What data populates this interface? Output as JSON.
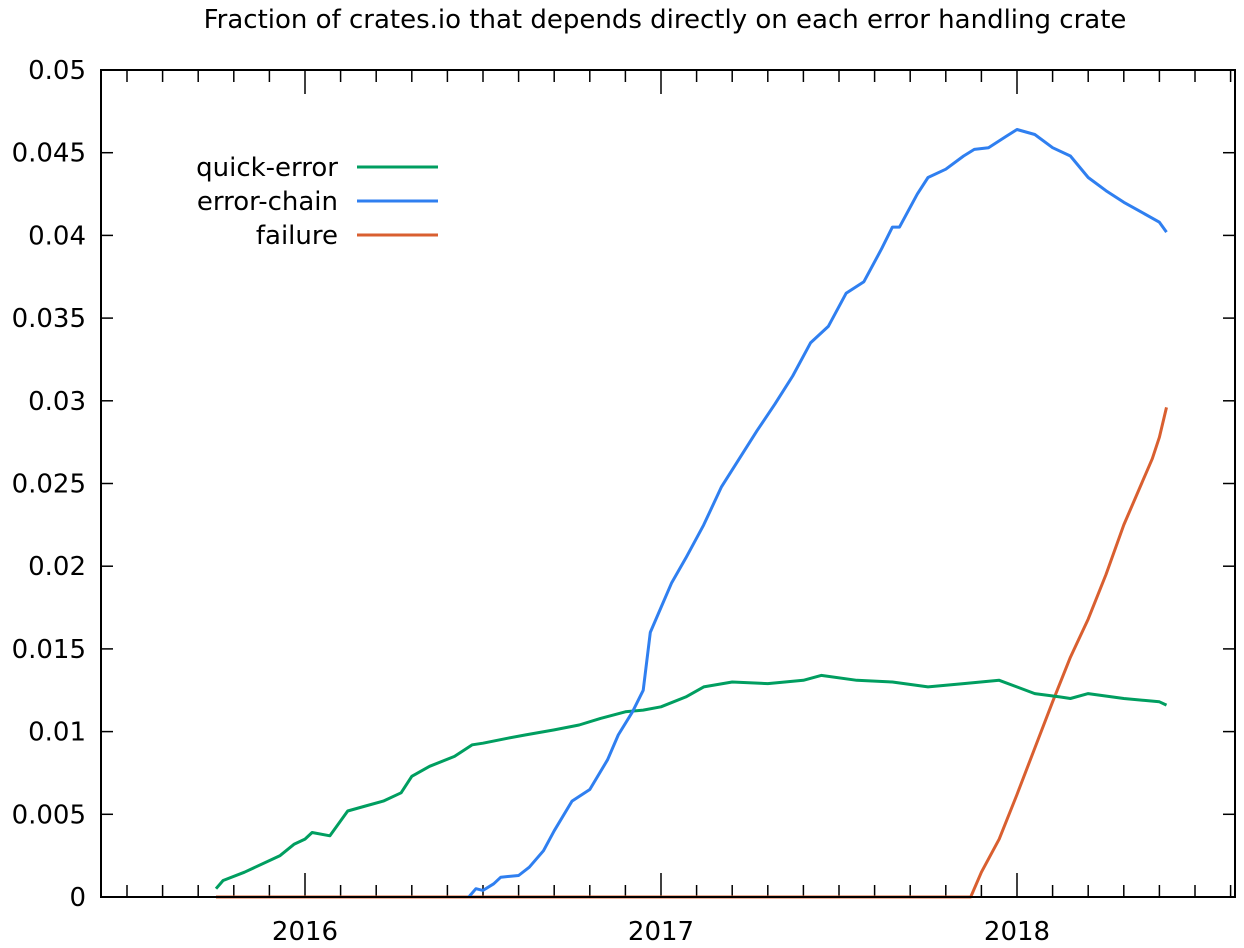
{
  "chart_data": {
    "type": "line",
    "title": "Fraction of crates.io that depends directly on each error handling crate",
    "xlabel": "",
    "ylabel": "",
    "xlim": [
      2015.43,
      2018.62
    ],
    "ylim": [
      0,
      0.05
    ],
    "x_ticks": [
      "2016",
      "2017",
      "2018"
    ],
    "y_ticks": [
      "0",
      "0.005",
      "0.01",
      "0.015",
      "0.02",
      "0.025",
      "0.03",
      "0.035",
      "0.04",
      "0.045",
      "0.05"
    ],
    "grid": false,
    "legend_position": "upper-left",
    "series": [
      {
        "name": "quick-error",
        "color": "#009e60",
        "x": [
          2015.75,
          2015.77,
          2015.83,
          2015.93,
          2015.97,
          2016.0,
          2016.02,
          2016.07,
          2016.1,
          2016.12,
          2016.17,
          2016.22,
          2016.27,
          2016.3,
          2016.35,
          2016.42,
          2016.47,
          2016.5,
          2016.57,
          2016.62,
          2016.7,
          2016.77,
          2016.83,
          2016.9,
          2016.95,
          2017.0,
          2017.07,
          2017.12,
          2017.2,
          2017.3,
          2017.4,
          2017.45,
          2017.55,
          2017.65,
          2017.75,
          2017.85,
          2017.95,
          2018.05,
          2018.12,
          2018.15,
          2018.2,
          2018.3,
          2018.4,
          2018.42
        ],
        "values": [
          0.0005,
          0.001,
          0.0015,
          0.0025,
          0.0032,
          0.0035,
          0.0039,
          0.0037,
          0.0046,
          0.0052,
          0.0055,
          0.0058,
          0.0063,
          0.0073,
          0.0079,
          0.0085,
          0.0092,
          0.0093,
          0.0096,
          0.0098,
          0.0101,
          0.0104,
          0.0108,
          0.0112,
          0.0113,
          0.0115,
          0.0121,
          0.0127,
          0.013,
          0.0129,
          0.0131,
          0.0134,
          0.0131,
          0.013,
          0.0127,
          0.0129,
          0.0131,
          0.0123,
          0.0121,
          0.012,
          0.0123,
          0.012,
          0.0118,
          0.0116
        ]
      },
      {
        "name": "error-chain",
        "color": "#2f7ff0",
        "x": [
          2016.46,
          2016.48,
          2016.5,
          2016.53,
          2016.55,
          2016.6,
          2016.63,
          2016.67,
          2016.7,
          2016.75,
          2016.8,
          2016.85,
          2016.88,
          2016.92,
          2016.95,
          2016.97,
          2017.0,
          2017.03,
          2017.07,
          2017.12,
          2017.17,
          2017.22,
          2017.27,
          2017.32,
          2017.37,
          2017.42,
          2017.47,
          2017.52,
          2017.57,
          2017.62,
          2017.65,
          2017.67,
          2017.72,
          2017.75,
          2017.8,
          2017.85,
          2017.88,
          2017.92,
          2017.97,
          2018.0,
          2018.05,
          2018.1,
          2018.15,
          2018.2,
          2018.25,
          2018.3,
          2018.35,
          2018.4,
          2018.42
        ],
        "values": [
          0.0,
          0.0005,
          0.0004,
          0.0008,
          0.0012,
          0.0013,
          0.0018,
          0.0028,
          0.004,
          0.0058,
          0.0065,
          0.0083,
          0.0098,
          0.0112,
          0.0125,
          0.016,
          0.0175,
          0.019,
          0.0205,
          0.0225,
          0.0248,
          0.0265,
          0.0282,
          0.0298,
          0.0315,
          0.0335,
          0.0345,
          0.0365,
          0.0372,
          0.0392,
          0.0405,
          0.0405,
          0.0425,
          0.0435,
          0.044,
          0.0448,
          0.0452,
          0.0453,
          0.046,
          0.0464,
          0.0461,
          0.0453,
          0.0448,
          0.0435,
          0.0427,
          0.042,
          0.0414,
          0.0408,
          0.0402
        ]
      },
      {
        "name": "failure",
        "color": "#d95f30",
        "x": [
          2015.75,
          2017.87,
          2017.9,
          2017.95,
          2018.0,
          2018.05,
          2018.1,
          2018.15,
          2018.2,
          2018.25,
          2018.3,
          2018.35,
          2018.38,
          2018.4,
          2018.42
        ],
        "values": [
          0.0,
          0.0,
          0.0015,
          0.0035,
          0.0062,
          0.009,
          0.0118,
          0.0145,
          0.0168,
          0.0195,
          0.0225,
          0.025,
          0.0265,
          0.0278,
          0.0296
        ]
      }
    ]
  },
  "legend": {
    "items": [
      {
        "label": "quick-error",
        "color": "#009e60"
      },
      {
        "label": "error-chain",
        "color": "#2f7ff0"
      },
      {
        "label": "failure",
        "color": "#d95f30"
      }
    ]
  }
}
